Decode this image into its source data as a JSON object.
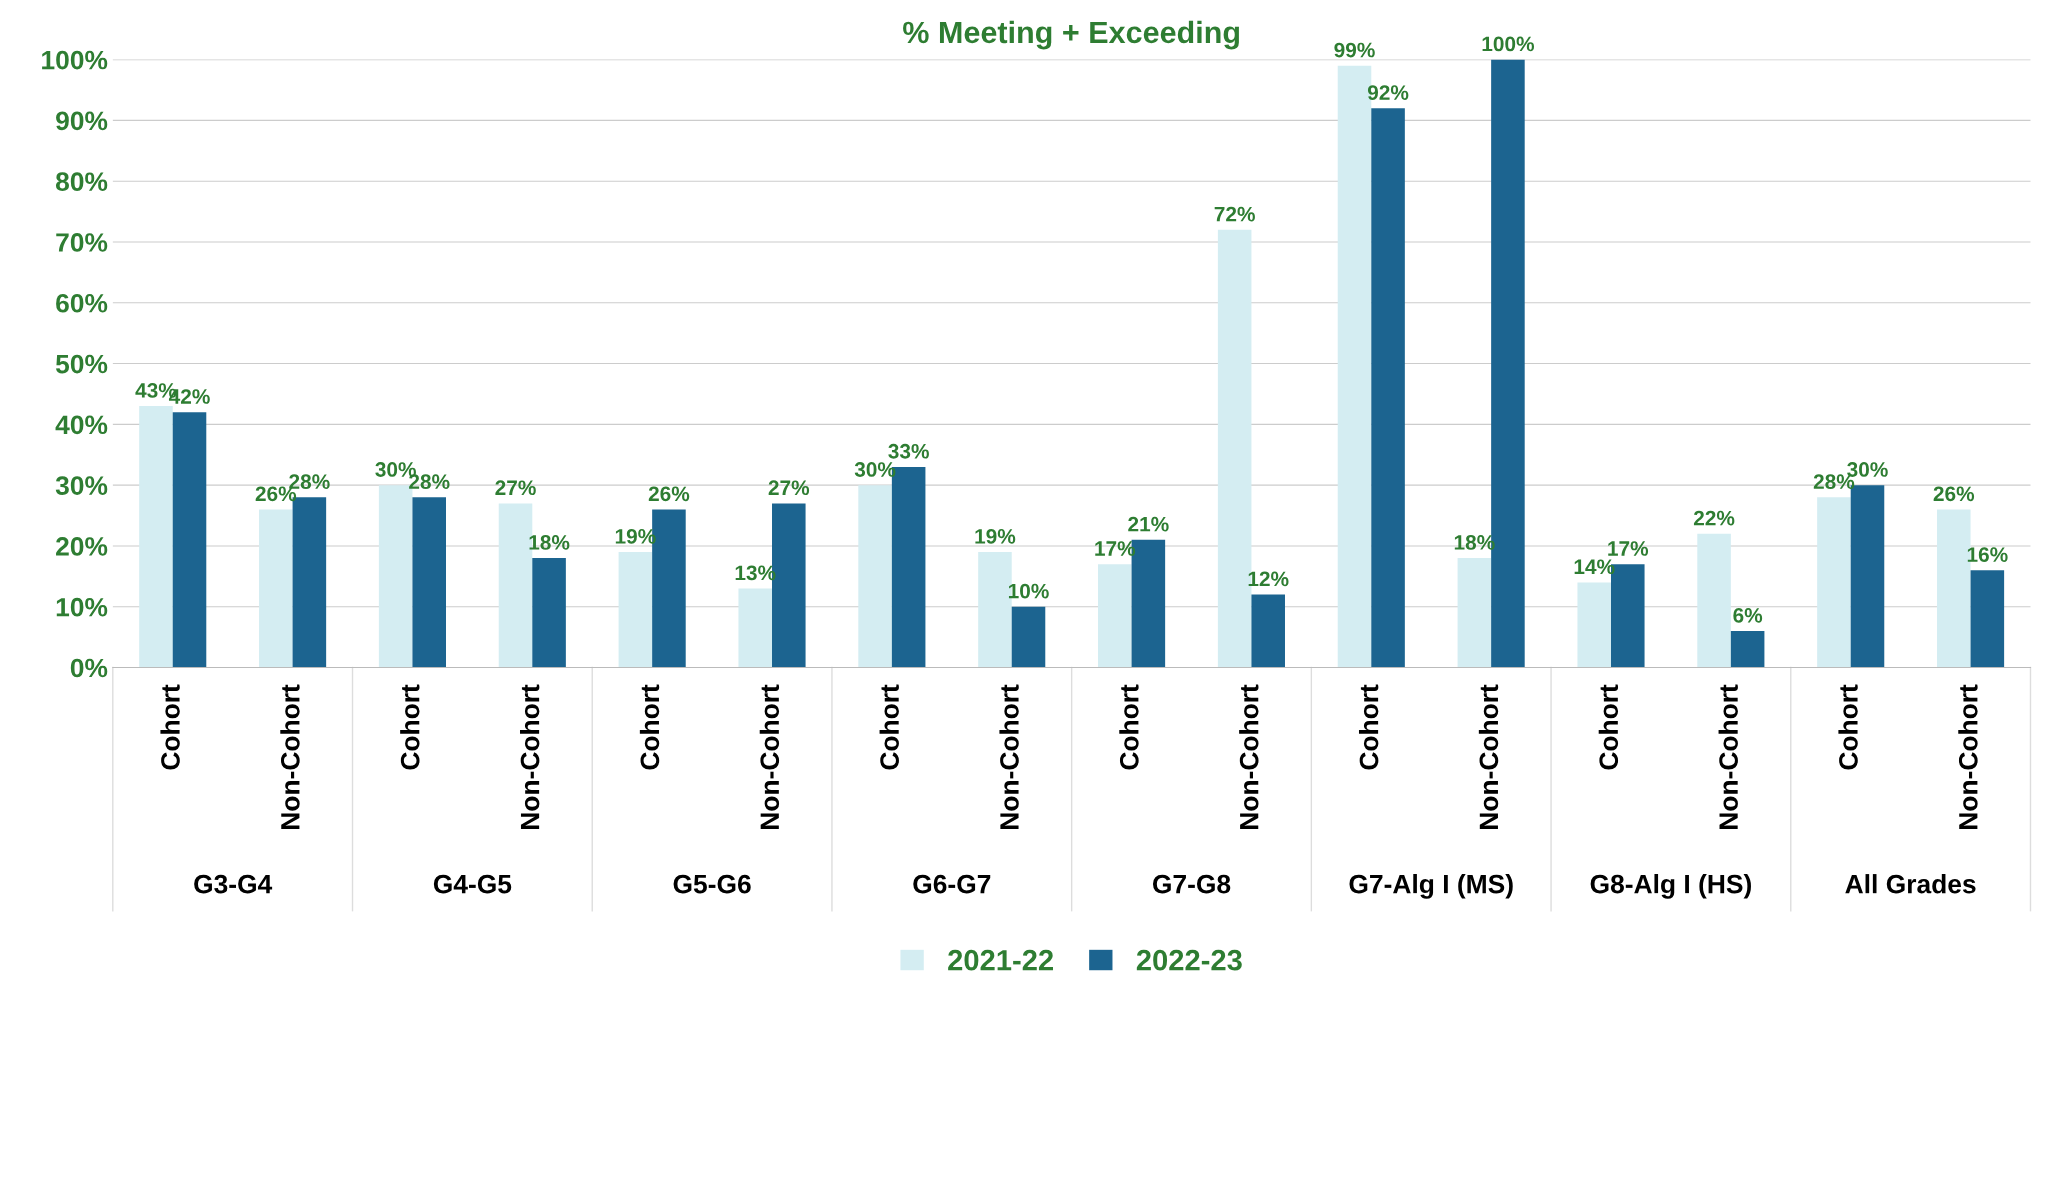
{
  "chart_data": {
    "type": "bar",
    "title": "% Meeting + Exceeding",
    "categories": [
      "Cohort",
      "Non-Cohort",
      "Cohort",
      "Non-Cohort",
      "Cohort",
      "Non-Cohort",
      "Cohort",
      "Non-Cohort",
      "Cohort",
      "Non-Cohort",
      "Cohort",
      "Non-Cohort",
      "Cohort",
      "Non-Cohort",
      "Cohort",
      "Non-Cohort"
    ],
    "annotations": [
      "G3-G4",
      "G4-G5",
      "G5-G6",
      "G6-G7",
      "G7-G8",
      "G7-Alg I (MS)",
      "G8-Alg I (HS)",
      "All Grades"
    ],
    "series": [
      {
        "name": "2021-22",
        "color": "#d4edf2",
        "values": [
          43,
          26,
          30,
          27,
          19,
          13,
          30,
          19,
          17,
          72,
          99,
          18,
          14,
          22,
          28,
          26
        ],
        "value_labels": [
          "43%",
          "26%",
          "30%",
          "27%",
          "19%",
          "13%",
          "30%",
          "19%",
          "17%",
          "72%",
          "99%",
          "18%",
          "14%",
          "22%",
          "28%",
          "26%"
        ]
      },
      {
        "name": "2022-23",
        "color": "#1c6490",
        "values": [
          42,
          28,
          28,
          18,
          26,
          27,
          33,
          10,
          21,
          12,
          92,
          100,
          17,
          6,
          30,
          16
        ],
        "value_labels": [
          "42%",
          "28%",
          "28%",
          "18%",
          "26%",
          "27%",
          "33%",
          "10%",
          "21%",
          "12%",
          "92%",
          "100%",
          "17%",
          "6%",
          "30%",
          "16%"
        ]
      }
    ],
    "ylim": [
      0,
      100
    ],
    "yticks": [
      {
        "value": 0,
        "label": "0%"
      },
      {
        "value": 10,
        "label": "10%"
      },
      {
        "value": 20,
        "label": "20%"
      },
      {
        "value": 30,
        "label": "30%"
      },
      {
        "value": 40,
        "label": "40%"
      },
      {
        "value": 50,
        "label": "50%"
      },
      {
        "value": 60,
        "label": "60%"
      },
      {
        "value": 70,
        "label": "70%"
      },
      {
        "value": 80,
        "label": "80%"
      },
      {
        "value": 90,
        "label": "90%"
      },
      {
        "value": 100,
        "label": "100%"
      }
    ],
    "grid": "y",
    "legend": "bottom"
  }
}
